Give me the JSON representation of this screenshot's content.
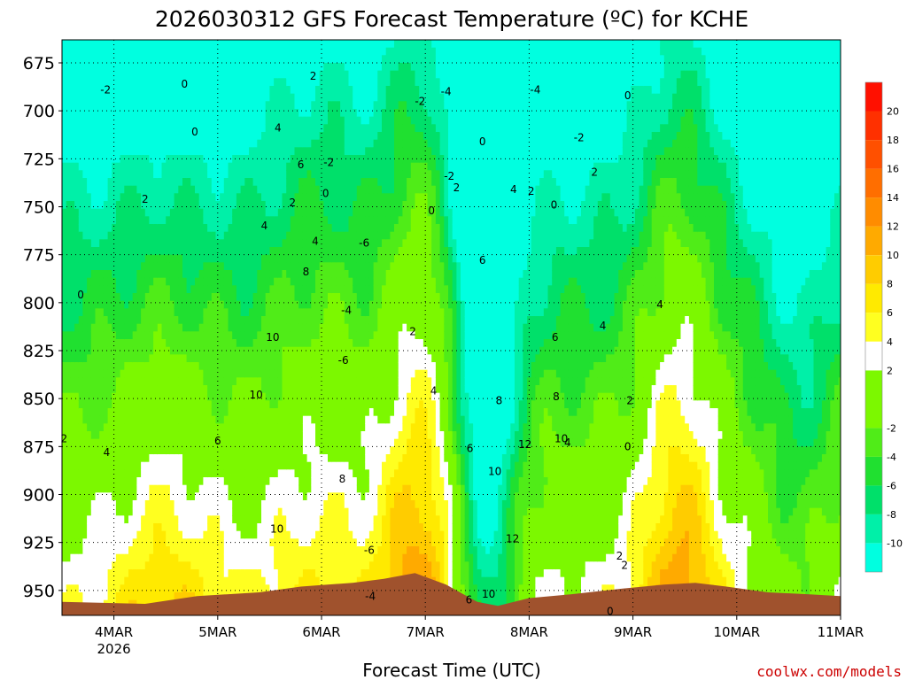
{
  "chart_data": {
    "type": "heatmap",
    "title": "2026030312 GFS Forecast Temperature (ºC) for KCHE",
    "xlabel": "Forecast Time (UTC)",
    "credit": "coolwx.com/models",
    "x_ticks": [
      {
        "label": "4MAR",
        "sublabel": "2026",
        "day": 4
      },
      {
        "label": "5MAR",
        "sublabel": "",
        "day": 5
      },
      {
        "label": "6MAR",
        "sublabel": "",
        "day": 6
      },
      {
        "label": "7MAR",
        "sublabel": "",
        "day": 7
      },
      {
        "label": "8MAR",
        "sublabel": "",
        "day": 8
      },
      {
        "label": "9MAR",
        "sublabel": "",
        "day": 9
      },
      {
        "label": "10MAR",
        "sublabel": "",
        "day": 10
      },
      {
        "label": "11MAR",
        "sublabel": "",
        "day": 11
      }
    ],
    "xlim_days": [
      3.5,
      11.0
    ],
    "y_ticks": [
      675,
      700,
      725,
      750,
      775,
      800,
      825,
      850,
      875,
      900,
      925,
      950
    ],
    "ylim_hpa": [
      663,
      963
    ],
    "grid": true,
    "colorbar": {
      "levels": [
        -12,
        -10,
        -8,
        -6,
        -4,
        -2,
        2,
        4,
        6,
        8,
        10,
        12,
        14,
        16,
        18,
        20,
        22
      ],
      "tick_labels": [
        "20",
        "18",
        "16",
        "14",
        "12",
        "10",
        "8",
        "6",
        "4",
        "2",
        "-2",
        "-4",
        "-6",
        "-8",
        "-10"
      ],
      "tick_values": [
        20,
        18,
        16,
        14,
        12,
        10,
        8,
        6,
        4,
        2,
        -2,
        -4,
        -6,
        -8,
        -10
      ],
      "colors": [
        "#00ffe0",
        "#00f0a8",
        "#00e06a",
        "#20e030",
        "#50ec18",
        "#7cf800",
        "#ffffff",
        "#ffff20",
        "#ffea00",
        "#ffcc00",
        "#ffaa00",
        "#ff8c00",
        "#ff6e00",
        "#ff5000",
        "#ff3000",
        "#ff1000",
        "#ff0050"
      ]
    },
    "contour_labels": [
      {
        "text": "-2",
        "day": 3.92,
        "p": 689
      },
      {
        "text": "0",
        "day": 4.68,
        "p": 686
      },
      {
        "text": "2",
        "day": 5.92,
        "p": 682
      },
      {
        "text": "0",
        "day": 4.78,
        "p": 711
      },
      {
        "text": "2",
        "day": 4.3,
        "p": 746
      },
      {
        "text": "2",
        "day": 5.72,
        "p": 748
      },
      {
        "text": "4",
        "day": 5.58,
        "p": 709
      },
      {
        "text": "6",
        "day": 5.8,
        "p": 728
      },
      {
        "text": "-2",
        "day": 6.07,
        "p": 727
      },
      {
        "text": "0",
        "day": 6.04,
        "p": 743
      },
      {
        "text": "4",
        "day": 5.94,
        "p": 768
      },
      {
        "text": "8",
        "day": 5.85,
        "p": 784
      },
      {
        "text": "4",
        "day": 5.45,
        "p": 760
      },
      {
        "text": "0",
        "day": 3.68,
        "p": 796
      },
      {
        "text": "10",
        "day": 5.53,
        "p": 818
      },
      {
        "text": "10",
        "day": 5.37,
        "p": 848
      },
      {
        "text": "8",
        "day": 6.2,
        "p": 892
      },
      {
        "text": "10",
        "day": 5.57,
        "p": 918
      },
      {
        "text": "6",
        "day": 5.0,
        "p": 872
      },
      {
        "text": "4",
        "day": 3.93,
        "p": 878
      },
      {
        "text": "2",
        "day": 3.52,
        "p": 871
      },
      {
        "text": "-2",
        "day": 6.95,
        "p": 695
      },
      {
        "text": "-6",
        "day": 6.41,
        "p": 769
      },
      {
        "text": "-4",
        "day": 6.24,
        "p": 804
      },
      {
        "text": "-6",
        "day": 6.21,
        "p": 830
      },
      {
        "text": "-6",
        "day": 6.46,
        "p": 929
      },
      {
        "text": "-4",
        "day": 6.47,
        "p": 953
      },
      {
        "text": "6",
        "day": 7.42,
        "p": 955
      },
      {
        "text": "2",
        "day": 6.88,
        "p": 815
      },
      {
        "text": "4",
        "day": 7.08,
        "p": 846
      },
      {
        "text": "6",
        "day": 7.43,
        "p": 876
      },
      {
        "text": "0",
        "day": 7.06,
        "p": 752
      },
      {
        "text": "-2",
        "day": 7.23,
        "p": 734
      },
      {
        "text": "2",
        "day": 7.3,
        "p": 740
      },
      {
        "text": "0",
        "day": 7.55,
        "p": 716
      },
      {
        "text": "6",
        "day": 7.55,
        "p": 778
      },
      {
        "text": "8",
        "day": 7.71,
        "p": 851
      },
      {
        "text": "10",
        "day": 7.67,
        "p": 888
      },
      {
        "text": "12",
        "day": 7.96,
        "p": 874
      },
      {
        "text": "12",
        "day": 7.84,
        "p": 923
      },
      {
        "text": "10",
        "day": 7.61,
        "p": 952
      },
      {
        "text": "6",
        "day": 8.25,
        "p": 818
      },
      {
        "text": "8",
        "day": 8.26,
        "p": 849
      },
      {
        "text": "10",
        "day": 8.31,
        "p": 871
      },
      {
        "text": "4",
        "day": 8.37,
        "p": 873
      },
      {
        "text": "4",
        "day": 8.71,
        "p": 812
      },
      {
        "text": "2",
        "day": 8.97,
        "p": 851
      },
      {
        "text": "0",
        "day": 8.95,
        "p": 875
      },
      {
        "text": "2",
        "day": 8.87,
        "p": 932
      },
      {
        "text": "0",
        "day": 8.78,
        "p": 961
      },
      {
        "text": "4",
        "day": 7.85,
        "p": 741
      },
      {
        "text": "2",
        "day": 8.02,
        "p": 742
      },
      {
        "text": "0",
        "day": 8.24,
        "p": 749
      },
      {
        "text": "-4",
        "day": 7.2,
        "p": 690
      },
      {
        "text": "-4",
        "day": 8.06,
        "p": 689
      },
      {
        "text": "0",
        "day": 8.95,
        "p": 692
      },
      {
        "text": "-2",
        "day": 8.48,
        "p": 714
      },
      {
        "text": "2",
        "day": 8.63,
        "p": 732
      },
      {
        "text": "4",
        "day": 9.26,
        "p": 801
      },
      {
        "text": "2",
        "day": 8.92,
        "p": 937
      }
    ]
  }
}
